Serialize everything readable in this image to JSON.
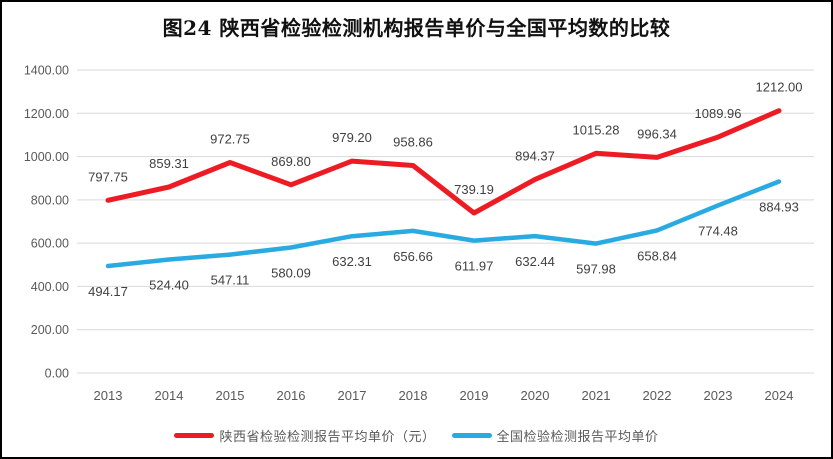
{
  "frame": {
    "title": "图24 陕西省检验检测机构报告单价与全国平均数的比较"
  },
  "chart_data": {
    "type": "line",
    "title": "图24 陕西省检验检测机构报告单价与全国平均数的比较",
    "categories": [
      "2013",
      "2014",
      "2015",
      "2016",
      "2017",
      "2018",
      "2019",
      "2020",
      "2021",
      "2022",
      "2023",
      "2024"
    ],
    "series": [
      {
        "name": "陕西省检验检测报告平均单价（元）",
        "color": "#ED1C24",
        "label_position": "above",
        "values": [
          797.75,
          859.31,
          972.75,
          869.8,
          979.2,
          958.86,
          739.19,
          894.37,
          1015.28,
          996.34,
          1089.96,
          1212.0
        ],
        "labels": [
          "797.75",
          "859.31",
          "972.75",
          "869.80",
          "979.20",
          "958.86",
          "739.19",
          "894.37",
          "1015.28",
          "996.34",
          "1089.96",
          "1212.00"
        ]
      },
      {
        "name": "全国检验检测报告平均单价",
        "color": "#29ABE2",
        "label_position": "below",
        "values": [
          494.17,
          524.4,
          547.11,
          580.09,
          632.31,
          656.66,
          611.97,
          632.44,
          597.98,
          658.84,
          774.48,
          884.93
        ],
        "labels": [
          "494.17",
          "524.40",
          "547.11",
          "580.09",
          "632.31",
          "656.66",
          "611.97",
          "632.44",
          "597.98",
          "658.84",
          "774.48",
          "884.93"
        ]
      }
    ],
    "ylim": [
      0,
      1400
    ],
    "y_ticks": [
      {
        "value": 0,
        "label": "0.00"
      },
      {
        "value": 200,
        "label": "200.00"
      },
      {
        "value": 400,
        "label": "400.00"
      },
      {
        "value": 600,
        "label": "600.00"
      },
      {
        "value": 800,
        "label": "800.00"
      },
      {
        "value": 1000,
        "label": "1000.00"
      },
      {
        "value": 1200,
        "label": "1200.00"
      },
      {
        "value": 1400,
        "label": "1400.00"
      }
    ],
    "grid": true,
    "legend_position": "bottom",
    "colors": {
      "gridline": "#D9D9D9",
      "axis_text": "#595959",
      "data_label": "#404040",
      "background": "#FFFFFF",
      "border": "#000000"
    }
  }
}
